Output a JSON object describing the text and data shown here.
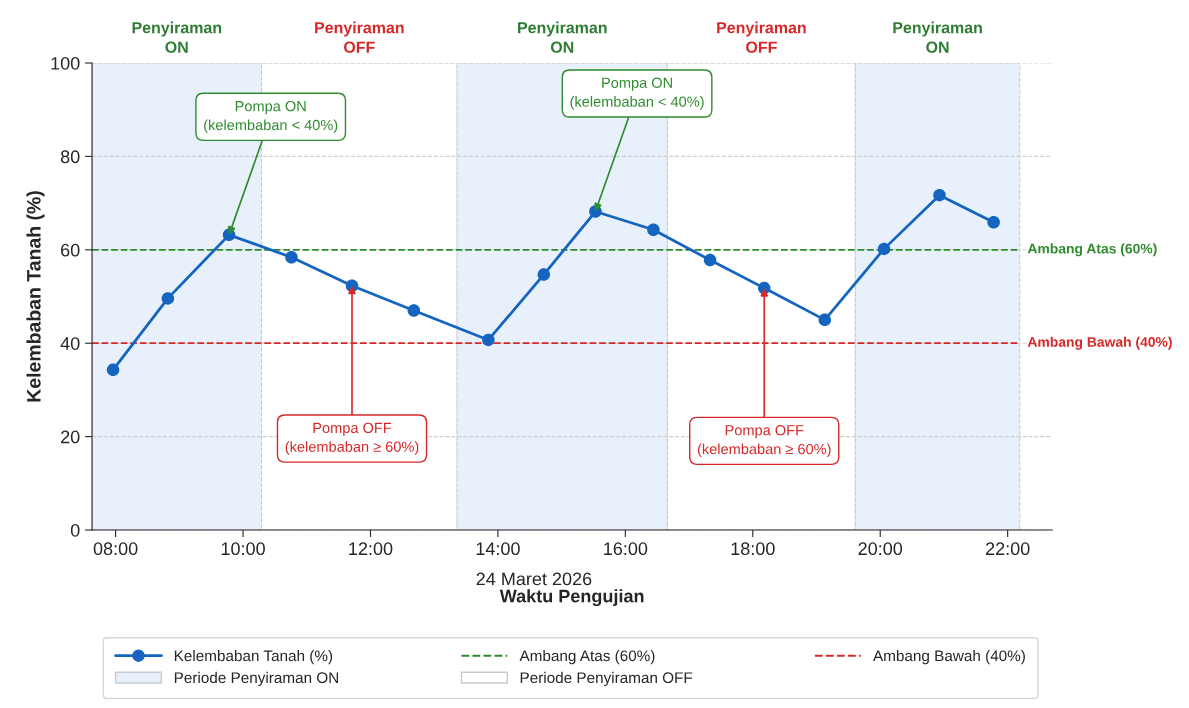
{
  "chart_data": {
    "type": "line",
    "xlabel": "Waktu Pengujian",
    "subtitle": "24 Maret 2026",
    "ylabel": "Kelembaban Tanah (%)",
    "x": [
      7.96,
      8.82,
      9.78,
      10.76,
      11.71,
      12.68,
      13.85,
      14.72,
      15.53,
      16.44,
      17.33,
      18.18,
      19.13,
      20.06,
      20.93,
      21.78
    ],
    "series": [
      {
        "name": "Kelembaban Tanah (%)",
        "color": "#1565c0",
        "values": [
          34.3,
          49.6,
          63.2,
          58.4,
          52.3,
          47.0,
          40.7,
          54.7,
          68.2,
          64.3,
          57.8,
          51.8,
          45.0,
          60.2,
          71.7,
          65.9
        ]
      }
    ],
    "xlim": [
      7.63,
      22.7
    ],
    "xticks": [
      {
        "value": 8,
        "label": "08:00"
      },
      {
        "value": 10,
        "label": "10:00"
      },
      {
        "value": 12,
        "label": "12:00"
      },
      {
        "value": 14,
        "label": "14:00"
      },
      {
        "value": 16,
        "label": "16:00"
      },
      {
        "value": 18,
        "label": "18:00"
      },
      {
        "value": 20,
        "label": "20:00"
      },
      {
        "value": 22,
        "label": "22:00"
      }
    ],
    "ylim": [
      0,
      100
    ],
    "yticks": [
      0,
      20,
      40,
      60,
      80,
      100
    ],
    "grid": "y",
    "marker": "circle",
    "line_style": "solid",
    "legend": "bottom",
    "ref_lines": [
      {
        "axis": "y",
        "value": 60,
        "label": "Ambang Atas (60%)",
        "color": "#2e8b2e",
        "line_style": "dashed"
      },
      {
        "axis": "y",
        "value": 40,
        "label": "Ambang Bawah (40%)",
        "color": "#d62828",
        "line_style": "dashed"
      }
    ],
    "bands": [
      {
        "axis": "x",
        "from": 7.63,
        "to": 10.29,
        "label": "Penyiraman\nON",
        "color": "#e8f0fc"
      },
      {
        "axis": "x",
        "from": 10.29,
        "to": 13.36,
        "label": "Penyiraman\nOFF",
        "color": "#ffffff"
      },
      {
        "axis": "x",
        "from": 13.36,
        "to": 16.66,
        "label": "Penyiraman\nON",
        "color": "#e8f0fc"
      },
      {
        "axis": "x",
        "from": 16.66,
        "to": 19.61,
        "label": "Penyiraman\nOFF",
        "color": "#ffffff"
      },
      {
        "axis": "x",
        "from": 19.61,
        "to": 22.19,
        "label": "Penyiraman\nON",
        "color": "#e8f0fc"
      }
    ],
    "annotations": [
      {
        "text": "Pompa ON\n(kelembaban < 40%)",
        "x": 9.78,
        "y": 63.2
      },
      {
        "text": "Pompa OFF\n(kelembaban ≥ 60%)",
        "x": 11.71,
        "y": 52.3
      },
      {
        "text": "Pompa ON\n(kelembaban < 40%)",
        "x": 15.53,
        "y": 68.2
      },
      {
        "text": "Pompa OFF\n(kelembaban ≥ 60%)",
        "x": 18.18,
        "y": 51.8
      },
      "Periode Penyiraman ON",
      "Periode Penyiraman OFF"
    ]
  }
}
